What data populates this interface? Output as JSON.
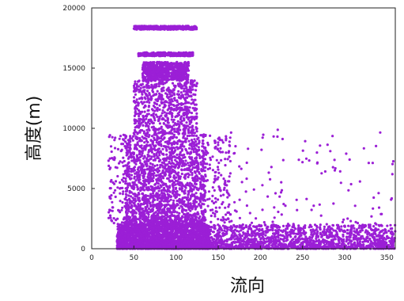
{
  "chart_data": {
    "type": "scatter",
    "title": "",
    "xlabel": "流向",
    "ylabel": "高度(m)",
    "xlim": [
      0,
      360
    ],
    "ylim": [
      0,
      20000
    ],
    "xticks": [
      0,
      50,
      100,
      150,
      200,
      250,
      300,
      350
    ],
    "yticks": [
      0,
      5000,
      10000,
      15000,
      20000
    ],
    "marker_color": "#9b1fd6",
    "grid": false,
    "series": [
      {
        "name": "",
        "clusters": [
          {
            "x": [
              30,
              140
            ],
            "y": [
              0,
              2000
            ],
            "density": "very high"
          },
          {
            "x": [
              140,
              360
            ],
            "y": [
              0,
              2000
            ],
            "density": "high"
          },
          {
            "x": [
              40,
              135
            ],
            "y": [
              2000,
              9500
            ],
            "density": "high"
          },
          {
            "x": [
              20,
              165
            ],
            "y": [
              2000,
              9500
            ],
            "density": "medium"
          },
          {
            "x": [
              50,
              125
            ],
            "y": [
              9500,
              14000
            ],
            "density": "medium"
          },
          {
            "x": [
              60,
              115
            ],
            "y": [
              14000,
              15500
            ],
            "density": "medium"
          },
          {
            "x": [
              55,
              120
            ],
            "y": [
              16000,
              16300
            ],
            "density": "band"
          },
          {
            "x": [
              50,
              125
            ],
            "y": [
              18200,
              18500
            ],
            "density": "band"
          },
          {
            "x": [
              150,
              360
            ],
            "y": [
              2000,
              10000
            ],
            "density": "sparse"
          }
        ]
      }
    ]
  }
}
